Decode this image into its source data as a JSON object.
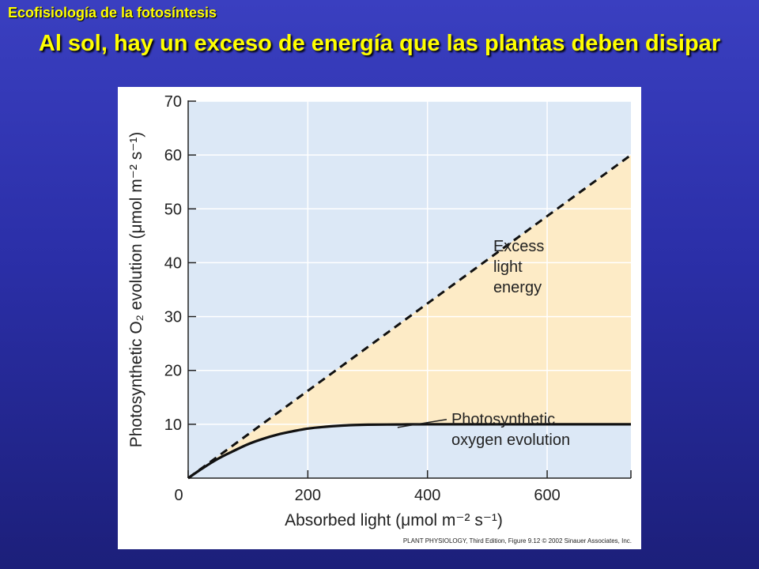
{
  "slide": {
    "label": "Ecofisiología de la fotosíntesis",
    "title": "Al sol, hay un exceso de energía que las plantas deben disipar"
  },
  "colors": {
    "background_top": "#3a3fc0",
    "background_bottom": "#1c1f7a",
    "title": "#ffff00",
    "plot_area": "#dce8f6",
    "excess_fill": "#fdebc6",
    "grid": "#ffffff",
    "line": "#111111"
  },
  "chart_data": {
    "type": "line",
    "xlabel": "Absorbed light (μmol m⁻² s⁻¹)",
    "ylabel": "Photosynthetic O₂ evolution (μmol m⁻² s⁻¹)",
    "xlim": [
      0,
      740
    ],
    "ylim": [
      0,
      70
    ],
    "xticks": [
      0,
      200,
      400,
      600
    ],
    "yticks": [
      10,
      20,
      30,
      40,
      50,
      60,
      70
    ],
    "grid": true,
    "series": [
      {
        "style": "dashed",
        "x": [
          0,
          740
        ],
        "y": [
          0,
          60
        ]
      },
      {
        "style": "solid",
        "x": [
          0,
          25,
          50,
          75,
          100,
          125,
          150,
          175,
          200,
          225,
          250,
          275,
          300,
          350,
          400,
          500,
          600,
          740
        ],
        "y": [
          0,
          1.9,
          3.6,
          5.0,
          6.3,
          7.3,
          8.1,
          8.7,
          9.2,
          9.5,
          9.7,
          9.85,
          9.92,
          9.97,
          10.0,
          10.0,
          10.0,
          10.0
        ]
      }
    ],
    "shaded_region": {
      "between": [
        "dashed",
        "solid"
      ]
    },
    "annotations": [
      {
        "lines": [
          "Excess",
          "light",
          "energy"
        ],
        "x": 510,
        "y": 28
      },
      {
        "lines": [
          "Photosynthetic",
          "oxygen evolution"
        ],
        "x": 440,
        "y": 6.2,
        "pointer_to": [
          350,
          10
        ]
      }
    ],
    "credit": "PLANT PHYSIOLOGY, Third Edition, Figure 9.12  © 2002 Sinauer Associates, Inc."
  }
}
